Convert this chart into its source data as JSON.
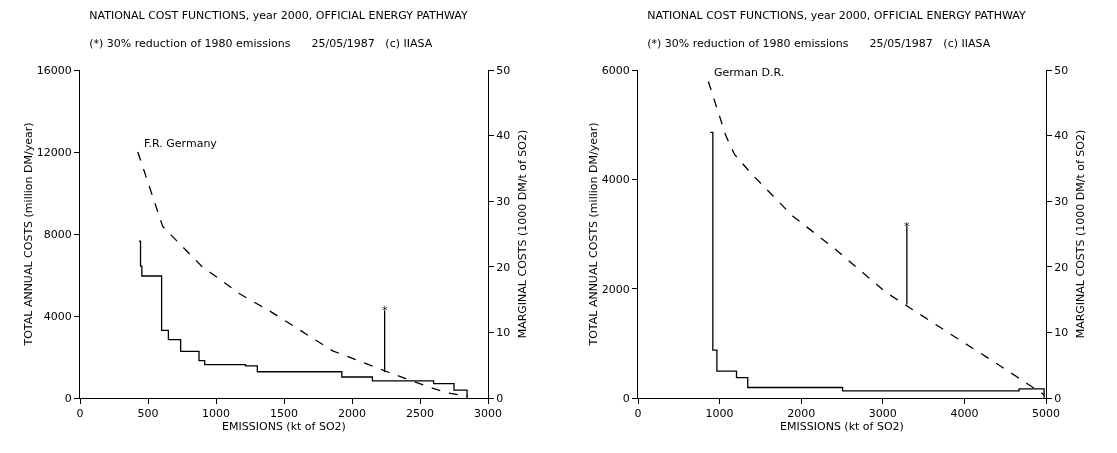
{
  "chart_data": [
    {
      "type": "line",
      "title": "NATIONAL COST FUNCTIONS, year 2000, OFFICIAL ENERGY PATHWAY",
      "subtitle": "(*) 30% reduction of 1980 emissions      25/05/1987   (c) IIASA",
      "xlabel": "EMISSIONS (kt of SO2)",
      "ylabel": "TOTAL ANNUAL COSTS (million DM/year)",
      "y2label": "MARGINAL COSTS (1000 DM/t of SO2)",
      "series": [
        {
          "type": "line",
          "line_style": "dashed",
          "color": "#000000",
          "x": [
            425,
            608,
            900,
            1033,
            1167,
            1408,
            1858,
            2258,
            2450,
            2690,
            2850
          ],
          "values": [
            12000,
            8370,
            6390,
            5770,
            5110,
            4190,
            2300,
            1280,
            810,
            260,
            90
          ]
        },
        {
          "type": "step",
          "axis": "y2",
          "line_style": "solid",
          "color": "#000000",
          "x": [
            433,
            445,
            455,
            600,
            650,
            740,
            875,
            917,
            1217,
            1304,
            1925,
            2150,
            2600,
            2750,
            2846
          ],
          "values": [
            23.9,
            20.1,
            18.6,
            10.3,
            8.9,
            7.1,
            5.7,
            5.1,
            4.9,
            4.0,
            3.2,
            2.6,
            2.2,
            1.2,
            0
          ]
        },
        {
          "type": "line",
          "line_style": "solid",
          "color": "#000000",
          "x": [
            2240,
            2240
          ],
          "values": [
            1260,
            4250
          ]
        }
      ],
      "annotations": [
        "F.R. Germany",
        {
          "text": "*",
          "x": 2240,
          "y": 4250
        }
      ],
      "xlim": [
        0,
        3000
      ],
      "xticks": [
        0,
        500,
        1000,
        1500,
        2000,
        2500,
        3000
      ],
      "ylim": [
        0,
        16000
      ],
      "yticks": [
        0,
        4000,
        8000,
        12000,
        16000
      ],
      "y2lim": [
        0,
        50
      ],
      "y2ticks": [
        0,
        10,
        20,
        30,
        40,
        50
      ],
      "grid": false,
      "marker": "none"
    },
    {
      "type": "line",
      "title": "NATIONAL COST FUNCTIONS, year 2000, OFFICIAL ENERGY PATHWAY",
      "subtitle": "(*) 30% reduction of 1980 emissions      25/05/1987   (c) IIASA",
      "xlabel": "EMISSIONS (kt of SO2)",
      "ylabel": "TOTAL ANNUAL COSTS (million DM/year)",
      "y2label": "MARGINAL COSTS (1000 DM/t of SO2)",
      "series": [
        {
          "type": "line",
          "line_style": "dashed",
          "color": "#000000",
          "x": [
            862,
            1076,
            1181,
            1385,
            1894,
            2403,
            3041,
            3321,
            3881,
            4385,
            4742,
            4977
          ],
          "values": [
            5790,
            4800,
            4460,
            4110,
            3330,
            2740,
            1930,
            1660,
            1120,
            640,
            290,
            60
          ]
        },
        {
          "type": "step",
          "axis": "y2",
          "line_style": "solid",
          "color": "#000000",
          "x": [
            886,
            917,
            967,
            1207,
            1345,
            2507,
            4670,
            4977
          ],
          "values": [
            40.5,
            7.3,
            4.1,
            3.1,
            1.6,
            1.1,
            1.4,
            0
          ]
        },
        {
          "type": "line",
          "line_style": "solid",
          "color": "#000000",
          "x": [
            3295,
            3295
          ],
          "values": [
            1710,
            3140
          ]
        }
      ],
      "annotations": [
        "German D.R.",
        {
          "text": "*",
          "x": 3295,
          "y": 3140
        }
      ],
      "xlim": [
        0,
        5000
      ],
      "xticks": [
        0,
        1000,
        2000,
        3000,
        4000,
        5000
      ],
      "ylim": [
        0,
        6000
      ],
      "yticks": [
        0,
        2000,
        4000,
        6000
      ],
      "y2lim": [
        0,
        50
      ],
      "y2ticks": [
        0,
        10,
        20,
        30,
        40,
        50
      ],
      "grid": false,
      "marker": "none"
    }
  ]
}
